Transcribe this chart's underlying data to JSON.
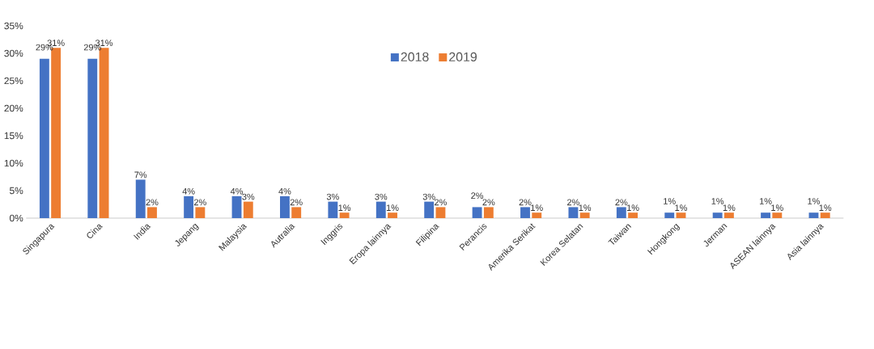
{
  "chart_data": {
    "type": "bar",
    "categories": [
      "Singapura",
      "Cina",
      "India",
      "Jepang",
      "Malaysia",
      "Autralia",
      "Inggris",
      "Eropa lainnya",
      "Filipina",
      "Perancis",
      "Amerika Serikat",
      "Korea Selatan",
      "Taiwan",
      "Hongkong",
      "Jerman",
      "ASEAN lainnya",
      "Asia lainnya"
    ],
    "series": [
      {
        "name": "2018",
        "color": "#4472c4",
        "values": [
          29,
          29,
          7,
          4,
          4,
          4,
          3,
          3,
          3,
          2,
          2,
          2,
          2,
          1,
          1,
          1,
          1
        ],
        "value_labels": [
          "29%",
          "29%",
          "7%",
          "4%",
          "4%",
          "4%",
          "3%",
          "3%",
          "3%",
          "2%",
          "2%",
          "2%",
          "2%",
          "1%",
          "1%",
          "1%",
          "1%"
        ]
      },
      {
        "name": "2019",
        "color": "#ed7d31",
        "values": [
          31,
          31,
          2,
          2,
          3,
          2,
          1,
          1,
          2,
          2,
          1,
          1,
          1,
          1,
          1,
          1,
          1
        ],
        "value_labels": [
          "31%",
          "31%",
          "2%",
          "2%",
          "3%",
          "2%",
          "1%",
          "1%",
          "2%",
          "2%",
          "1%",
          "1%",
          "1%",
          "1%",
          "1%",
          "1%",
          "1%"
        ]
      }
    ],
    "ylim": [
      0,
      35
    ],
    "yticks": [
      {
        "value": 0,
        "label": "0%"
      },
      {
        "value": 5,
        "label": "5%"
      },
      {
        "value": 10,
        "label": "10%"
      },
      {
        "value": 15,
        "label": "15%"
      },
      {
        "value": 20,
        "label": "20%"
      },
      {
        "value": 25,
        "label": "25%"
      },
      {
        "value": 30,
        "label": "30%"
      },
      {
        "value": 35,
        "label": "35%"
      }
    ],
    "legend": "top"
  }
}
